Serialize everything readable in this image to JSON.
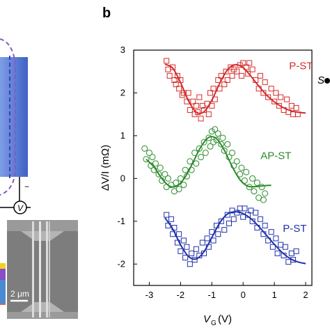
{
  "panel_label": "b",
  "left_panel": {
    "voltmeter_symbol": "V",
    "minus_sign": "−",
    "scalebar_text": "2 μm",
    "right_edge_symbol": "S",
    "colors": {
      "electrode_blue": "#5a7fd6",
      "loop_purple": "#8a5ab8",
      "sem_gray": "#8a8a8a"
    }
  },
  "chart_data": {
    "type": "scatter",
    "xlabel": "V",
    "xlabel_sub": "G",
    "xlabel_unit": "(V)",
    "ylabel": "ΔV/I (mΩ)",
    "xlim": [
      -3.5,
      2.2
    ],
    "ylim": [
      -2.5,
      3.0
    ],
    "xticks": [
      -3,
      -2,
      -1,
      0,
      1,
      2
    ],
    "yticks": [
      -2,
      -1,
      0,
      1,
      2,
      3
    ],
    "series": [
      {
        "name": "P-ST",
        "color": "#d42a2a",
        "marker": "square",
        "points": [
          [
            -2.45,
            2.75
          ],
          [
            -2.4,
            2.55
          ],
          [
            -2.35,
            2.4
          ],
          [
            -2.25,
            2.6
          ],
          [
            -2.2,
            2.3
          ],
          [
            -2.15,
            2.2
          ],
          [
            -2.1,
            2.4
          ],
          [
            -2.05,
            2.1
          ],
          [
            -2.0,
            2.3
          ],
          [
            -1.95,
            1.95
          ],
          [
            -1.9,
            2.0
          ],
          [
            -1.8,
            1.8
          ],
          [
            -1.75,
            2.0
          ],
          [
            -1.7,
            1.6
          ],
          [
            -1.6,
            1.8
          ],
          [
            -1.55,
            1.5
          ],
          [
            -1.5,
            1.7
          ],
          [
            -1.45,
            1.55
          ],
          [
            -1.4,
            1.9
          ],
          [
            -1.35,
            1.4
          ],
          [
            -1.3,
            1.7
          ],
          [
            -1.25,
            1.6
          ],
          [
            -1.15,
            1.75
          ],
          [
            -1.1,
            1.5
          ],
          [
            -1.05,
            2.0
          ],
          [
            -1.0,
            1.7
          ],
          [
            -0.95,
            2.1
          ],
          [
            -0.9,
            1.85
          ],
          [
            -0.8,
            2.3
          ],
          [
            -0.75,
            2.1
          ],
          [
            -0.7,
            2.4
          ],
          [
            -0.6,
            2.2
          ],
          [
            -0.55,
            2.5
          ],
          [
            -0.5,
            2.3
          ],
          [
            -0.4,
            2.6
          ],
          [
            -0.35,
            2.4
          ],
          [
            -0.3,
            2.55
          ],
          [
            -0.2,
            2.5
          ],
          [
            -0.1,
            2.65
          ],
          [
            -0.05,
            2.4
          ],
          [
            0.0,
            2.7
          ],
          [
            0.1,
            2.6
          ],
          [
            0.15,
            2.45
          ],
          [
            0.2,
            2.7
          ],
          [
            0.3,
            2.55
          ],
          [
            0.4,
            2.3
          ],
          [
            0.5,
            2.1
          ],
          [
            0.55,
            2.4
          ],
          [
            0.65,
            2.0
          ],
          [
            0.7,
            2.25
          ],
          [
            0.8,
            1.9
          ],
          [
            0.9,
            2.1
          ],
          [
            1.0,
            1.8
          ],
          [
            1.05,
            2.0
          ],
          [
            1.15,
            1.7
          ],
          [
            1.2,
            1.9
          ],
          [
            1.3,
            1.6
          ],
          [
            1.4,
            1.85
          ],
          [
            1.45,
            1.55
          ],
          [
            1.55,
            1.7
          ],
          [
            1.6,
            1.5
          ],
          [
            1.7,
            1.65
          ],
          [
            1.75,
            1.5
          ]
        ],
        "fit_x": [
          -2.5,
          -2.25,
          -2.0,
          -1.75,
          -1.5,
          -1.25,
          -1.0,
          -0.75,
          -0.5,
          -0.25,
          0.0,
          0.25,
          0.5,
          0.75,
          1.0,
          1.25,
          1.5,
          1.75,
          2.0
        ],
        "fit_y": [
          2.67,
          2.58,
          2.24,
          1.82,
          1.55,
          1.56,
          1.83,
          2.22,
          2.54,
          2.66,
          2.59,
          2.39,
          2.16,
          1.95,
          1.79,
          1.67,
          1.59,
          1.55,
          1.53
        ]
      },
      {
        "name": "AP-ST",
        "color": "#2a8a2a",
        "marker": "circle",
        "points": [
          [
            -3.15,
            0.7
          ],
          [
            -3.1,
            0.45
          ],
          [
            -3.0,
            0.6
          ],
          [
            -2.95,
            0.3
          ],
          [
            -2.9,
            0.5
          ],
          [
            -2.85,
            0.2
          ],
          [
            -2.8,
            0.35
          ],
          [
            -2.7,
            0.1
          ],
          [
            -2.65,
            0.25
          ],
          [
            -2.6,
            -0.05
          ],
          [
            -2.5,
            0.1
          ],
          [
            -2.45,
            -0.2
          ],
          [
            -2.4,
            0.0
          ],
          [
            -2.3,
            -0.15
          ],
          [
            -2.2,
            -0.3
          ],
          [
            -2.15,
            -0.1
          ],
          [
            -2.05,
            -0.25
          ],
          [
            -2.0,
            0.0
          ],
          [
            -1.9,
            -0.15
          ],
          [
            -1.85,
            0.2
          ],
          [
            -1.8,
            0.05
          ],
          [
            -1.7,
            0.4
          ],
          [
            -1.65,
            0.2
          ],
          [
            -1.55,
            0.6
          ],
          [
            -1.5,
            0.35
          ],
          [
            -1.4,
            0.7
          ],
          [
            -1.35,
            0.5
          ],
          [
            -1.25,
            0.85
          ],
          [
            -1.2,
            0.6
          ],
          [
            -1.1,
            0.95
          ],
          [
            -1.05,
            0.75
          ],
          [
            -1.0,
            1.1
          ],
          [
            -0.95,
            0.85
          ],
          [
            -0.9,
            1.15
          ],
          [
            -0.85,
            0.9
          ],
          [
            -0.8,
            1.05
          ],
          [
            -0.7,
            0.8
          ],
          [
            -0.65,
            0.95
          ],
          [
            -0.6,
            0.65
          ],
          [
            -0.5,
            0.8
          ],
          [
            -0.45,
            0.5
          ],
          [
            -0.35,
            0.6
          ],
          [
            -0.3,
            0.3
          ],
          [
            -0.2,
            0.4
          ],
          [
            -0.1,
            0.1
          ],
          [
            -0.05,
            0.25
          ],
          [
            0.05,
            -0.05
          ],
          [
            0.1,
            0.15
          ],
          [
            0.2,
            -0.2
          ],
          [
            0.3,
            0.0
          ],
          [
            0.35,
            -0.3
          ],
          [
            0.45,
            -0.1
          ],
          [
            0.5,
            -0.45
          ],
          [
            0.6,
            -0.2
          ],
          [
            0.65,
            -0.5
          ],
          [
            0.7,
            -0.35
          ]
        ],
        "fit_x": [
          -3.1,
          -2.85,
          -2.6,
          -2.35,
          -2.1,
          -1.85,
          -1.6,
          -1.35,
          -1.1,
          -0.85,
          -0.6,
          -0.35,
          -0.1,
          0.15,
          0.4,
          0.65,
          0.9
        ],
        "fit_y": [
          0.45,
          0.27,
          0.0,
          -0.18,
          -0.17,
          0.04,
          0.38,
          0.74,
          0.96,
          0.93,
          0.66,
          0.28,
          -0.03,
          -0.18,
          -0.19,
          -0.17,
          -0.16
        ]
      },
      {
        "name": "P-ST",
        "color": "#1f2fa8",
        "marker": "square",
        "points": [
          [
            -2.45,
            -0.85
          ],
          [
            -2.4,
            -1.1
          ],
          [
            -2.3,
            -0.95
          ],
          [
            -2.25,
            -1.3
          ],
          [
            -2.2,
            -1.15
          ],
          [
            -2.1,
            -1.5
          ],
          [
            -2.05,
            -1.3
          ],
          [
            -2.0,
            -1.7
          ],
          [
            -1.9,
            -1.45
          ],
          [
            -1.85,
            -1.85
          ],
          [
            -1.8,
            -1.6
          ],
          [
            -1.7,
            -2.0
          ],
          [
            -1.65,
            -1.75
          ],
          [
            -1.55,
            -1.9
          ],
          [
            -1.5,
            -1.65
          ],
          [
            -1.4,
            -1.8
          ],
          [
            -1.3,
            -1.5
          ],
          [
            -1.25,
            -1.75
          ],
          [
            -1.15,
            -1.4
          ],
          [
            -1.1,
            -1.6
          ],
          [
            -1.0,
            -1.25
          ],
          [
            -0.95,
            -1.45
          ],
          [
            -0.85,
            -1.1
          ],
          [
            -0.8,
            -1.3
          ],
          [
            -0.7,
            -1.0
          ],
          [
            -0.6,
            -1.2
          ],
          [
            -0.5,
            -0.85
          ],
          [
            -0.45,
            -1.05
          ],
          [
            -0.35,
            -0.75
          ],
          [
            -0.3,
            -0.95
          ],
          [
            -0.2,
            -0.8
          ],
          [
            -0.1,
            -0.7
          ],
          [
            0.0,
            -0.9
          ],
          [
            0.05,
            -0.7
          ],
          [
            0.15,
            -0.85
          ],
          [
            0.25,
            -0.75
          ],
          [
            0.3,
            -1.0
          ],
          [
            0.4,
            -0.8
          ],
          [
            0.45,
            -1.15
          ],
          [
            0.55,
            -0.95
          ],
          [
            0.65,
            -1.3
          ],
          [
            0.7,
            -1.1
          ],
          [
            0.8,
            -1.45
          ],
          [
            0.9,
            -1.25
          ],
          [
            0.95,
            -1.6
          ],
          [
            1.05,
            -1.4
          ],
          [
            1.1,
            -1.75
          ],
          [
            1.2,
            -1.55
          ],
          [
            1.3,
            -1.8
          ],
          [
            1.35,
            -1.6
          ],
          [
            1.45,
            -1.95
          ],
          [
            1.55,
            -1.75
          ],
          [
            1.6,
            -1.9
          ],
          [
            1.7,
            -1.7
          ]
        ],
        "fit_x": [
          -2.5,
          -2.25,
          -2.0,
          -1.75,
          -1.5,
          -1.25,
          -1.0,
          -0.75,
          -0.5,
          -0.25,
          0.0,
          0.25,
          0.5,
          0.75,
          1.0,
          1.25,
          1.5,
          1.75,
          2.0
        ],
        "fit_y": [
          -0.92,
          -1.18,
          -1.55,
          -1.82,
          -1.88,
          -1.71,
          -1.38,
          -1.04,
          -0.83,
          -0.78,
          -0.82,
          -0.94,
          -1.12,
          -1.33,
          -1.54,
          -1.73,
          -1.87,
          -1.95,
          -1.99
        ]
      }
    ]
  }
}
